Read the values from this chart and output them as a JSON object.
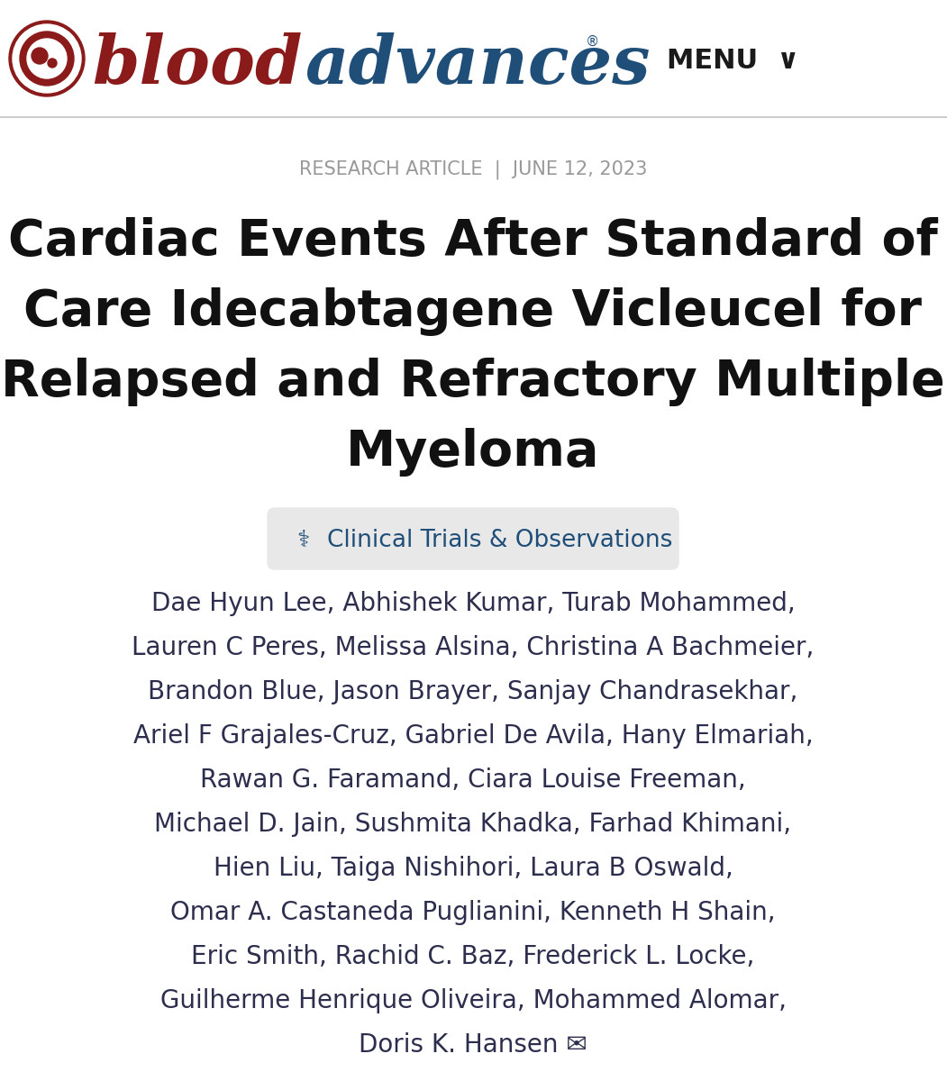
{
  "bg_color": "#ffffff",
  "header_bg": "#ffffff",
  "header_border_color": "#cccccc",
  "blood_color": "#8B1A1A",
  "advances_color": "#1F4E79",
  "menu_color": "#1a1a1a",
  "research_article_color": "#999999",
  "title_color": "#111111",
  "badge_bg": "#e8e8e8",
  "badge_text_color": "#1F4E79",
  "authors_color": "#2d2d4e",
  "research_article_text": "RESEARCH ARTICLE  |  JUNE 12, 2023",
  "title_lines": [
    "Cardiac Events After Standard of",
    "Care Idecabtagene Vicleucel for",
    "Relapsed and Refractory Multiple",
    "Myeloma"
  ],
  "badge_label": "Clinical Trials & Observations",
  "authors_lines": [
    "Dae Hyun Lee, Abhishek Kumar, Turab Mohammed,",
    "Lauren C Peres, Melissa Alsina, Christina A Bachmeier,",
    "Brandon Blue, Jason Brayer, Sanjay Chandrasekhar,",
    "Ariel F Grajales-Cruz, Gabriel De Avila, Hany Elmariah,",
    "Rawan G. Faramand, Ciara Louise Freeman,",
    "Michael D. Jain, Sushmita Khadka, Farhad Khimani,",
    "Hien Liu, Taiga Nishihori, Laura B Oswald,",
    "Omar A. Castaneda Puglianini, Kenneth H Shain,",
    "Eric Smith, Rachid C. Baz, Frederick L. Locke,",
    "Guilherme Henrique Oliveira, Mohammed Alomar,",
    "Doris K. Hansen ✉"
  ]
}
